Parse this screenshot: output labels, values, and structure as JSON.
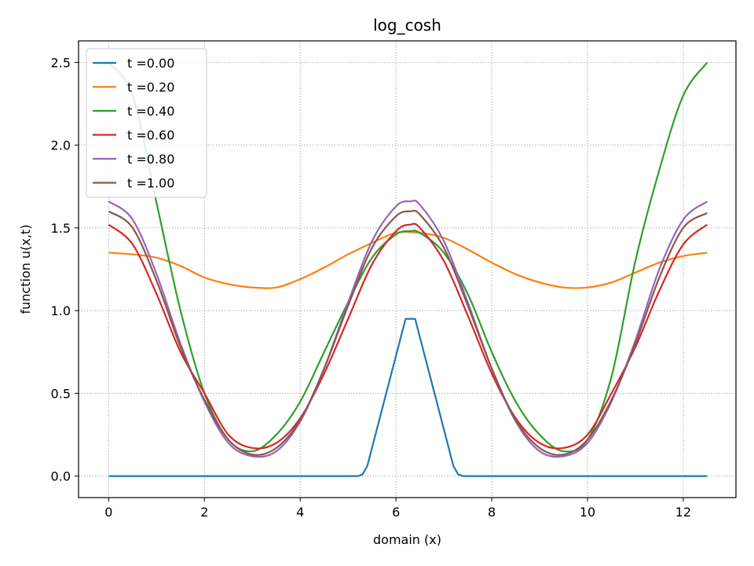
{
  "chart_data": {
    "type": "line",
    "title": "log_cosh",
    "xlabel": "domain (x)",
    "ylabel": "function u(x,t)",
    "xlim": [
      -0.63,
      13.1
    ],
    "ylim": [
      -0.13,
      2.63
    ],
    "x_ticks": [
      0,
      2,
      4,
      6,
      8,
      10,
      12
    ],
    "x_tick_labels": [
      "0",
      "2",
      "4",
      "6",
      "8",
      "10",
      "12"
    ],
    "y_ticks": [
      0.0,
      0.5,
      1.0,
      1.5,
      2.0,
      2.5
    ],
    "y_tick_labels": [
      "0.0",
      "0.5",
      "1.0",
      "1.5",
      "2.0",
      "2.5"
    ],
    "grid": true,
    "legend_position": "top-left",
    "series": [
      {
        "name": "t =0.00",
        "color": "#1f77b4",
        "x": [
          0,
          5.2,
          5.3,
          5.4,
          6.2,
          6.4,
          7.2,
          7.3,
          7.4,
          12.5
        ],
        "y": [
          0,
          0,
          0.01,
          0.06,
          0.95,
          0.95,
          0.06,
          0.01,
          0,
          0
        ]
      },
      {
        "name": "t =0.20",
        "color": "#ff7f0e",
        "x": [
          0,
          0.5,
          1,
          1.5,
          2,
          2.5,
          3,
          3.5,
          4,
          4.5,
          5,
          5.5,
          6,
          6.5,
          7,
          7.5,
          8,
          8.5,
          9,
          9.5,
          10,
          10.5,
          11,
          11.5,
          12,
          12.5
        ],
        "y": [
          1.35,
          1.34,
          1.32,
          1.27,
          1.2,
          1.16,
          1.14,
          1.14,
          1.19,
          1.26,
          1.34,
          1.41,
          1.47,
          1.47,
          1.44,
          1.37,
          1.29,
          1.22,
          1.17,
          1.14,
          1.14,
          1.17,
          1.23,
          1.29,
          1.33,
          1.35
        ]
      },
      {
        "name": "t =0.40",
        "color": "#2ca02c",
        "x": [
          0,
          0.5,
          1,
          1.5,
          2,
          2.5,
          3,
          3.5,
          4,
          4.5,
          5,
          5.5,
          6,
          6.3,
          6.5,
          7,
          7.5,
          8,
          8.5,
          9,
          9.5,
          10,
          10.5,
          11,
          11.5,
          12,
          12.5
        ],
        "y": [
          2.5,
          2.3,
          1.65,
          1.0,
          0.5,
          0.22,
          0.15,
          0.25,
          0.45,
          0.75,
          1.05,
          1.32,
          1.46,
          1.48,
          1.47,
          1.35,
          1.1,
          0.75,
          0.45,
          0.25,
          0.15,
          0.22,
          0.6,
          1.3,
          1.85,
          2.3,
          2.5
        ]
      },
      {
        "name": "t =0.60",
        "color": "#d62728",
        "x": [
          0,
          0.5,
          1,
          1.5,
          2,
          2.5,
          3,
          3.5,
          4,
          4.5,
          5,
          5.5,
          6,
          6.3,
          6.5,
          7,
          7.5,
          8,
          8.5,
          9,
          9.5,
          10,
          10.5,
          11,
          11.5,
          12,
          12.5
        ],
        "y": [
          1.52,
          1.4,
          1.1,
          0.75,
          0.5,
          0.25,
          0.17,
          0.2,
          0.35,
          0.62,
          0.95,
          1.28,
          1.48,
          1.52,
          1.5,
          1.3,
          0.97,
          0.62,
          0.35,
          0.2,
          0.17,
          0.25,
          0.5,
          0.78,
          1.12,
          1.4,
          1.52
        ]
      },
      {
        "name": "t =0.80",
        "color": "#9467bd",
        "x": [
          0,
          0.5,
          1,
          1.5,
          2,
          2.5,
          3,
          3.5,
          4,
          4.5,
          5,
          5.5,
          6,
          6.3,
          6.5,
          7,
          7.5,
          8,
          8.5,
          9,
          9.5,
          10,
          10.5,
          11,
          11.5,
          12,
          12.5
        ],
        "y": [
          1.66,
          1.55,
          1.22,
          0.8,
          0.45,
          0.2,
          0.12,
          0.15,
          0.33,
          0.65,
          1.05,
          1.42,
          1.63,
          1.66,
          1.64,
          1.42,
          1.05,
          0.65,
          0.33,
          0.15,
          0.12,
          0.2,
          0.45,
          0.82,
          1.25,
          1.55,
          1.66
        ]
      },
      {
        "name": "t =1.00",
        "color": "#8c564b",
        "x": [
          0,
          0.5,
          1,
          1.5,
          2,
          2.5,
          3,
          3.5,
          4,
          4.5,
          5,
          5.5,
          6,
          6.3,
          6.5,
          7,
          7.5,
          8,
          8.5,
          9,
          9.5,
          10,
          10.5,
          11,
          11.5,
          12,
          12.5
        ],
        "y": [
          1.6,
          1.5,
          1.18,
          0.78,
          0.46,
          0.22,
          0.13,
          0.17,
          0.34,
          0.65,
          1.03,
          1.38,
          1.57,
          1.6,
          1.58,
          1.38,
          1.03,
          0.65,
          0.34,
          0.17,
          0.13,
          0.22,
          0.46,
          0.8,
          1.2,
          1.5,
          1.59
        ]
      }
    ]
  }
}
